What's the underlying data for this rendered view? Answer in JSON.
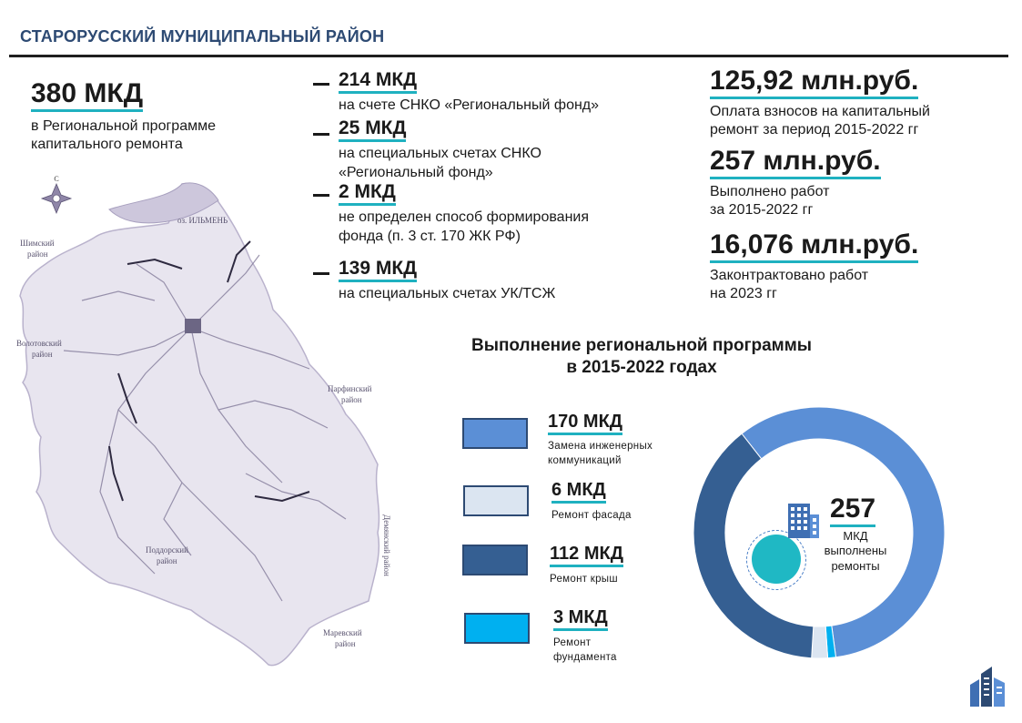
{
  "header": {
    "title": "СТАРОРУССКИЙ МУНИЦИПАЛЬНЫЙ РАЙОН"
  },
  "total": {
    "value": "380 МКД",
    "desc_line1": "в Региональной программе",
    "desc_line2": "капитального ремонта"
  },
  "funds": [
    {
      "value": "214 МКД",
      "lines": [
        "на счете СНКО «Региональный фонд»"
      ]
    },
    {
      "value": "25 МКД",
      "lines": [
        "на специальных счетах СНКО",
        "«Региональный фонд»"
      ]
    },
    {
      "value": "2 МКД",
      "lines": [
        "не определен способ формирования",
        "фонда (п.  3 ст. 170 ЖК РФ)"
      ]
    },
    {
      "value": "139 МКД",
      "lines": [
        "на специальных счетах УК/ТСЖ"
      ]
    }
  ],
  "finance": [
    {
      "value": "125,92 млн.руб.",
      "lines": [
        "Оплата взносов на капитальный",
        "ремонт за период 2015-2022 гг"
      ]
    },
    {
      "value": "257 млн.руб.",
      "lines": [
        "Выполнено работ",
        "за 2015-2022 гг"
      ]
    },
    {
      "value": "16,076 млн.руб.",
      "lines": [
        "Законтрактовано работ",
        "на 2023 гг"
      ]
    }
  ],
  "map": {
    "labels": {
      "shimsky": [
        "Шимский",
        "район"
      ],
      "volotovsky": [
        "Волотовский",
        "район"
      ],
      "parfinsky": [
        "Парфинский",
        "район"
      ],
      "poddorsky": [
        "Поддорский",
        "район"
      ],
      "demyansky": "Демянский район",
      "marevsky": [
        "Маревский",
        "район"
      ],
      "ilmen": "оз. ИЛЬМЕНЬ",
      "compass": "С"
    }
  },
  "chart_title": [
    "Выполнение региональной программы",
    "в 2015-2022  годах"
  ],
  "chart_data": {
    "type": "pie",
    "categories": [
      "Замена инженерных коммуникаций",
      "Ремонт фасада",
      "Ремонт крыш",
      "Ремонт фундамента"
    ],
    "values": [
      170,
      6,
      112,
      3
    ],
    "value_labels": [
      "170 МКД",
      "6 МКД",
      "112 МКД",
      "3 МКД"
    ],
    "colors": [
      "#5b8fd6",
      "#dbe5f1",
      "#355f92",
      "#00b0f0"
    ],
    "center": {
      "value": "257",
      "desc": [
        "МКД",
        "выполнены",
        "ремонты"
      ]
    }
  },
  "legend": [
    {
      "value": "170 МКД",
      "lines": [
        "Замена инженерных",
        "коммуникаций"
      ],
      "color": "#5b8fd6"
    },
    {
      "value": "6 МКД",
      "lines": [
        "Ремонт  фасада"
      ],
      "color": "#dbe5f1"
    },
    {
      "value": "112 МКД",
      "lines": [
        "Ремонт  крыш"
      ],
      "color": "#355f92"
    },
    {
      "value": "3 МКД",
      "lines": [
        "Ремонт",
        "фундамента"
      ],
      "color": "#00b0f0"
    }
  ],
  "colors": {
    "accent": "#1fb1c0",
    "header": "#2d4a73",
    "map": "#c9c3d9"
  }
}
